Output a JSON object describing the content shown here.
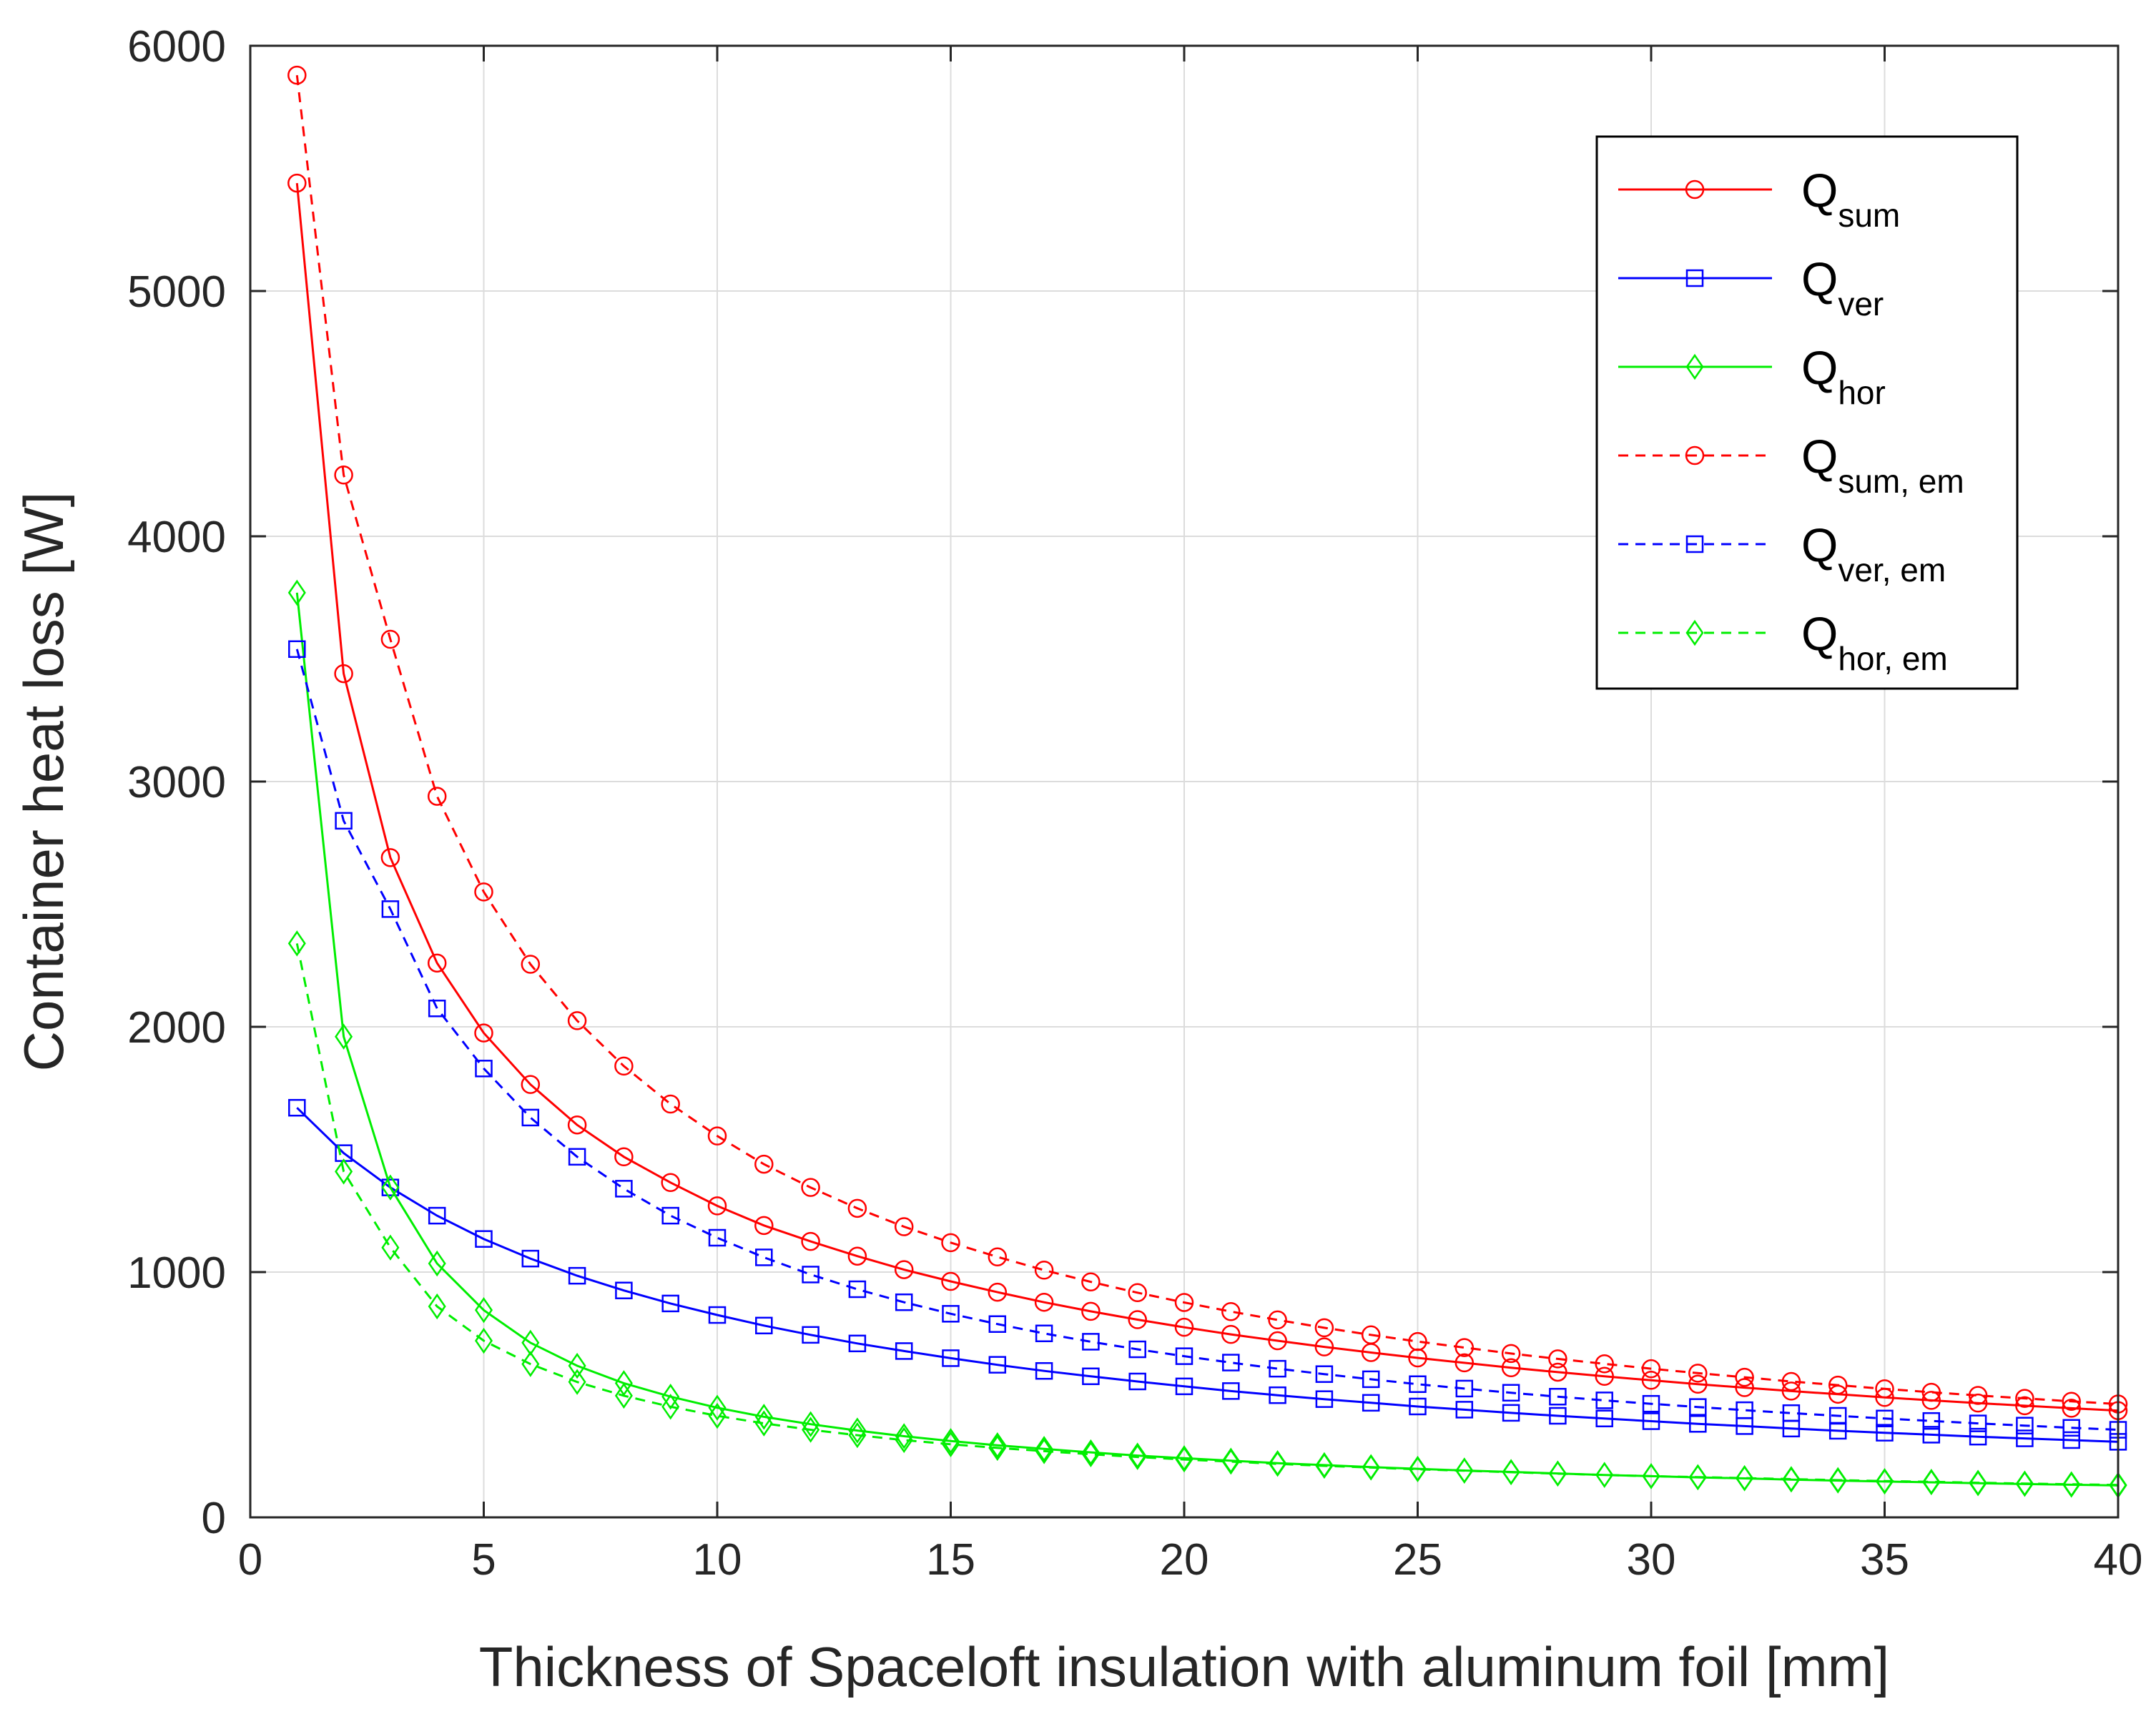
{
  "chart_data": {
    "type": "line",
    "title": "",
    "xlabel": "Thickness of Spaceloft insulation with aluminum foil [mm]",
    "ylabel": "Container heat loss [W]",
    "xlim": [
      0,
      40
    ],
    "ylim": [
      0,
      6000
    ],
    "xticks": [
      0,
      5,
      10,
      15,
      20,
      25,
      30,
      35,
      40
    ],
    "yticks": [
      0,
      1000,
      2000,
      3000,
      4000,
      5000,
      6000
    ],
    "grid": true,
    "legend_position": "top-right",
    "x": [
      1,
      2,
      3,
      4,
      5,
      6,
      7,
      8,
      9,
      10,
      11,
      12,
      13,
      14,
      15,
      16,
      17,
      18,
      19,
      20,
      21,
      22,
      23,
      24,
      25,
      26,
      27,
      28,
      29,
      30,
      31,
      32,
      33,
      34,
      35,
      36,
      37,
      38,
      39,
      40
    ],
    "series": [
      {
        "name": "Q",
        "sub": "sum",
        "color": "#ff0000",
        "style": "solid",
        "marker": "circle",
        "values": [
          5440,
          3440,
          2690,
          2260,
          1975,
          1765,
          1600,
          1470,
          1365,
          1270,
          1190,
          1125,
          1065,
          1010,
          962,
          918,
          877,
          840,
          806,
          775,
          746,
          720,
          695,
          672,
          650,
          630,
          610,
          592,
          575,
          559,
          543,
          529,
          515,
          502,
          489,
          477,
          466,
          455,
          445,
          435
        ]
      },
      {
        "name": "Q",
        "sub": "ver",
        "color": "#0000ff",
        "style": "solid",
        "marker": "square",
        "values": [
          1670,
          1485,
          1345,
          1230,
          1135,
          1055,
          985,
          925,
          872,
          825,
          782,
          744,
          709,
          678,
          649,
          622,
          597,
          575,
          554,
          534,
          515,
          498,
          482,
          467,
          452,
          439,
          426,
          414,
          403,
          392,
          381,
          372,
          362,
          353,
          345,
          337,
          329,
          322,
          315,
          308
        ]
      },
      {
        "name": "Q",
        "sub": "hor",
        "color": "#00ee00",
        "style": "solid",
        "marker": "diamond",
        "values": [
          3770,
          1960,
          1345,
          1035,
          845,
          712,
          618,
          547,
          492,
          447,
          410,
          380,
          354,
          331,
          311,
          294,
          279,
          265,
          252,
          241,
          231,
          221,
          213,
          205,
          198,
          191,
          185,
          179,
          173,
          168,
          163,
          159,
          154,
          150,
          146,
          143,
          139,
          136,
          133,
          130
        ]
      },
      {
        "name": "Q",
        "sub": "sum, em",
        "color": "#ff0000",
        "style": "dashed",
        "marker": "circle",
        "values": [
          5880,
          4250,
          3580,
          2940,
          2550,
          2255,
          2025,
          1840,
          1685,
          1555,
          1440,
          1345,
          1260,
          1185,
          1120,
          1062,
          1008,
          960,
          916,
          876,
          839,
          805,
          773,
          744,
          717,
          692,
          668,
          646,
          626,
          606,
          588,
          571,
          554,
          539,
          524,
          510,
          497,
          485,
          473,
          462
        ]
      },
      {
        "name": "Q",
        "sub": "ver, em",
        "color": "#0000ff",
        "style": "dashed",
        "marker": "square",
        "values": [
          3540,
          2840,
          2480,
          2075,
          1830,
          1630,
          1470,
          1340,
          1230,
          1140,
          1060,
          990,
          930,
          877,
          830,
          788,
          750,
          716,
          685,
          657,
          631,
          606,
          584,
          563,
          543,
          525,
          508,
          492,
          477,
          463,
          450,
          437,
          425,
          414,
          403,
          393,
          383,
          374,
          365,
          357
        ]
      },
      {
        "name": "Q",
        "sub": "hor, em",
        "color": "#00ee00",
        "style": "dashed",
        "marker": "diamond",
        "values": [
          2340,
          1410,
          1100,
          860,
          720,
          625,
          552,
          496,
          451,
          414,
          383,
          357,
          335,
          315,
          298,
          283,
          270,
          257,
          246,
          236,
          227,
          218,
          210,
          203,
          196,
          190,
          184,
          178,
          173,
          168,
          164,
          160,
          156,
          152,
          148,
          145,
          141,
          138,
          135,
          132
        ]
      }
    ]
  }
}
